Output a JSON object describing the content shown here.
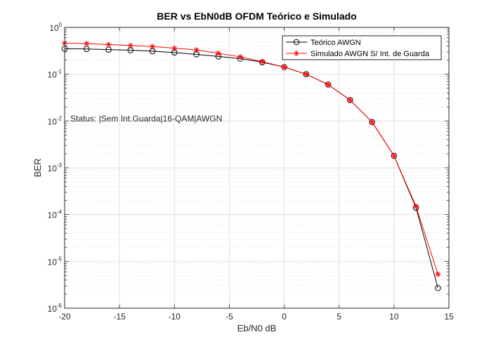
{
  "chart_data": {
    "type": "line",
    "title": "BER vs EbN0dB OFDM Teórico e Simulado",
    "xlabel": "Eb/N0 dB",
    "ylabel": "BER",
    "xlim": [
      -20,
      15
    ],
    "ylim": [
      1e-06,
      1
    ],
    "yscale": "log",
    "grid": "major and minor",
    "legend_position": "top-right",
    "x_ticks": [
      "-20",
      "-15",
      "-10",
      "-5",
      "0",
      "5",
      "10",
      "15"
    ],
    "y_ticks": [
      {
        "base": "10",
        "exp": "0"
      },
      {
        "base": "10",
        "exp": "-1"
      },
      {
        "base": "10",
        "exp": "-2"
      },
      {
        "base": "10",
        "exp": "-3"
      },
      {
        "base": "10",
        "exp": "-4"
      },
      {
        "base": "10",
        "exp": "-5"
      },
      {
        "base": "10",
        "exp": "-6"
      }
    ],
    "annotation": "Status: |Sem Int.Guarda|16-QAM|AWGN",
    "x": [
      -20,
      -18,
      -16,
      -14,
      -12,
      -10,
      -8,
      -6,
      -4,
      -2,
      0,
      2,
      4,
      6,
      8,
      10,
      12,
      14
    ],
    "series": [
      {
        "name": "Teórico AWGN",
        "color": "#000000",
        "marker": "circle",
        "values": [
          0.35,
          0.345,
          0.335,
          0.325,
          0.31,
          0.29,
          0.265,
          0.24,
          0.215,
          0.18,
          0.142,
          0.1,
          0.06,
          0.028,
          0.0095,
          0.0018,
          0.00014,
          2.7e-06
        ]
      },
      {
        "name": "Simulado AWGN S/ Int. de Guarda",
        "color": "#ff0000",
        "marker": "star",
        "values": [
          0.46,
          0.45,
          0.43,
          0.41,
          0.39,
          0.36,
          0.33,
          0.28,
          0.235,
          0.185,
          0.142,
          0.1,
          0.06,
          0.028,
          0.0095,
          0.0018,
          0.00015,
          5.3e-06
        ]
      }
    ]
  }
}
